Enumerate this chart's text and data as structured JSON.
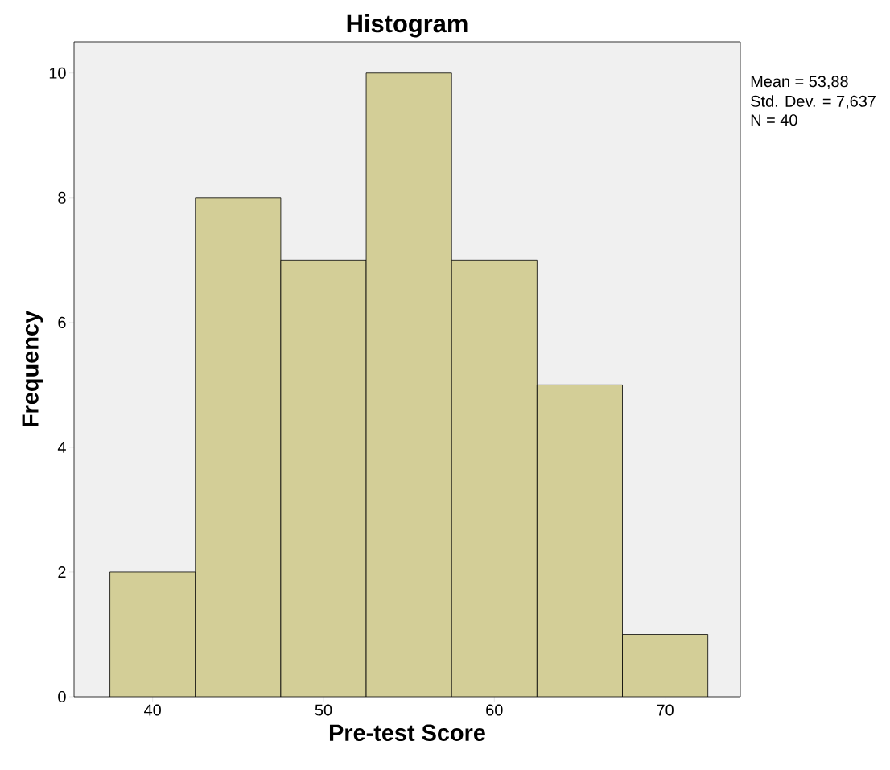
{
  "chart_data": {
    "type": "histogram",
    "title": "Histogram",
    "xlabel": "Pre-test Score",
    "ylabel": "Frequency",
    "bins": [
      37.5,
      42.5,
      47.5,
      52.5,
      57.5,
      62.5,
      67.5,
      72.5
    ],
    "values": [
      2,
      8,
      7,
      10,
      7,
      5,
      1
    ],
    "color": "#d3ce97",
    "xlim": [
      35.4,
      74.4
    ],
    "ylim": [
      0,
      10.5
    ],
    "xticks": [
      40,
      50,
      60,
      70
    ],
    "yticks": [
      0,
      2,
      4,
      6,
      8,
      10
    ],
    "grid": false,
    "annotations": [
      "Mean = 53,88",
      "Std. Dev. = 7,637",
      "N = 40"
    ]
  }
}
